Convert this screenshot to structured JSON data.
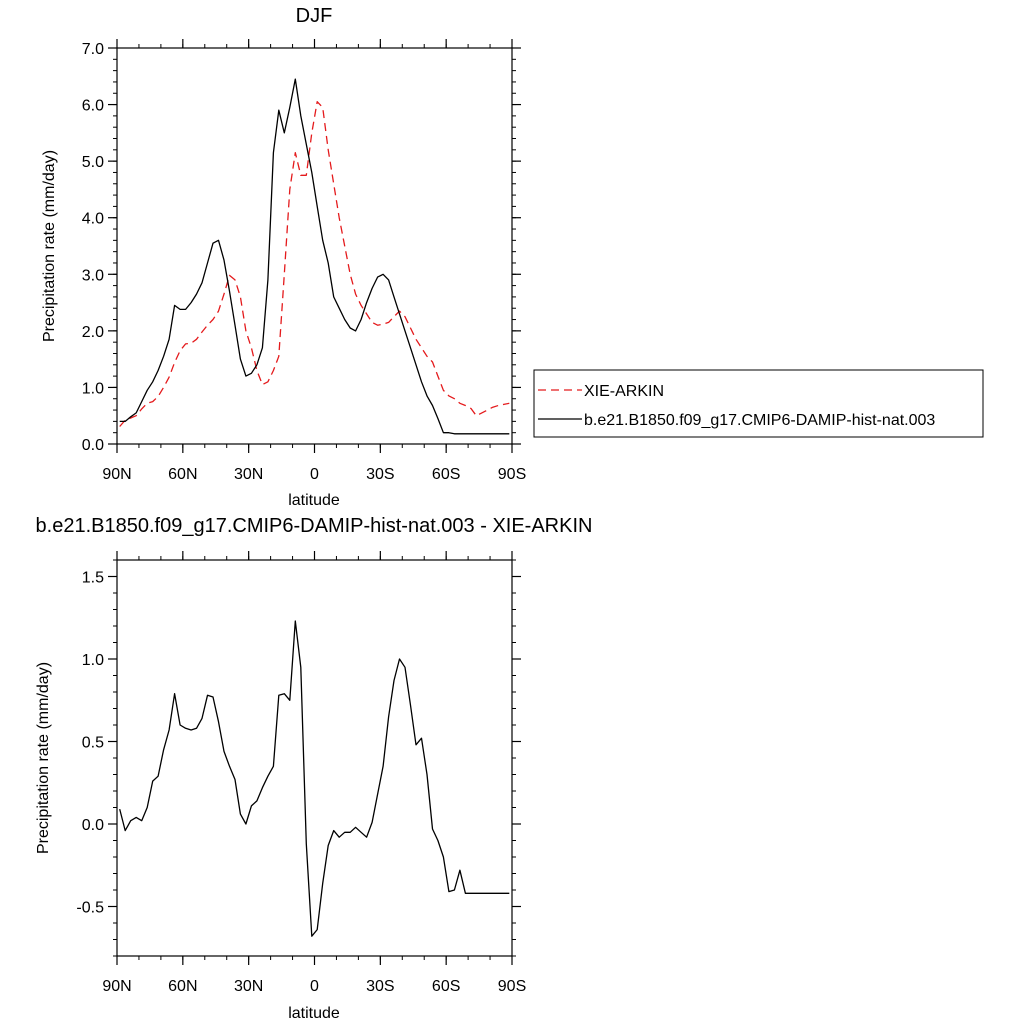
{
  "chart_data": [
    {
      "type": "line",
      "title": "DJF",
      "xlabel": "latitude",
      "ylabel": "Precipitation rate (mm/day)",
      "xlim": [
        90,
        -90
      ],
      "ylim": [
        0,
        7
      ],
      "xticks": [
        {
          "value": 90,
          "label": "90N"
        },
        {
          "value": 60,
          "label": "60N"
        },
        {
          "value": 30,
          "label": "30N"
        },
        {
          "value": 0,
          "label": "0"
        },
        {
          "value": -30,
          "label": "30S"
        },
        {
          "value": -60,
          "label": "60S"
        },
        {
          "value": -90,
          "label": "90S"
        }
      ],
      "yticks": [
        {
          "value": 0,
          "label": "0.0"
        },
        {
          "value": 1,
          "label": "1.0"
        },
        {
          "value": 2,
          "label": "2.0"
        },
        {
          "value": 3,
          "label": "3.0"
        },
        {
          "value": 4,
          "label": "4.0"
        },
        {
          "value": 5,
          "label": "5.0"
        },
        {
          "value": 6,
          "label": "6.0"
        },
        {
          "value": 7,
          "label": "7.0"
        }
      ],
      "legend_position": "right",
      "series": [
        {
          "name": "XIE-ARKIN",
          "color": "#e41a1c",
          "dash": "dashed",
          "x": [
            88.75,
            86.25,
            83.75,
            81.25,
            78.75,
            76.25,
            73.75,
            71.25,
            68.75,
            66.25,
            63.75,
            61.25,
            58.75,
            56.25,
            53.75,
            51.25,
            48.75,
            46.25,
            43.75,
            41.25,
            38.75,
            36.25,
            33.75,
            31.25,
            28.75,
            26.25,
            23.75,
            21.25,
            18.75,
            16.25,
            13.75,
            11.25,
            8.75,
            6.25,
            3.75,
            1.25,
            -1.25,
            -3.75,
            -6.25,
            -8.75,
            -11.25,
            -13.75,
            -16.25,
            -18.75,
            -21.25,
            -23.75,
            -26.25,
            -28.75,
            -31.25,
            -33.75,
            -36.25,
            -38.75,
            -41.25,
            -43.75,
            -46.25,
            -48.75,
            -51.25,
            -53.75,
            -56.25,
            -58.75,
            -61.25,
            -63.75,
            -66.25,
            -68.75,
            -71.25,
            -73.75,
            -76.25,
            -78.75,
            -81.25,
            -83.75,
            -86.25,
            -88.75
          ],
          "values": [
            0.31,
            0.42,
            0.46,
            0.5,
            0.62,
            0.72,
            0.75,
            0.84,
            1.0,
            1.18,
            1.44,
            1.65,
            1.77,
            1.78,
            1.85,
            1.98,
            2.1,
            2.2,
            2.35,
            2.65,
            2.98,
            2.9,
            2.6,
            2.0,
            1.7,
            1.3,
            1.05,
            1.1,
            1.3,
            1.55,
            3.0,
            4.5,
            5.15,
            4.75,
            4.75,
            5.5,
            6.05,
            5.95,
            5.2,
            4.6,
            4.0,
            3.5,
            3.0,
            2.65,
            2.45,
            2.3,
            2.15,
            2.1,
            2.12,
            2.15,
            2.25,
            2.35,
            2.25,
            2.05,
            1.85,
            1.7,
            1.55,
            1.45,
            1.2,
            0.95,
            0.85,
            0.8,
            0.72,
            0.68,
            0.63,
            0.5,
            0.55,
            0.6,
            0.65,
            0.68,
            0.7,
            0.72
          ]
        },
        {
          "name": "b.e21.B1850.f09_g17.CMIP6-DAMIP-hist-nat.003",
          "color": "#000000",
          "dash": "solid",
          "x": [
            88.75,
            86.25,
            83.75,
            81.25,
            78.75,
            76.25,
            73.75,
            71.25,
            68.75,
            66.25,
            63.75,
            61.25,
            58.75,
            56.25,
            53.75,
            51.25,
            48.75,
            46.25,
            43.75,
            41.25,
            38.75,
            36.25,
            33.75,
            31.25,
            28.75,
            26.25,
            23.75,
            21.25,
            18.75,
            16.25,
            13.75,
            11.25,
            8.75,
            6.25,
            3.75,
            1.25,
            -1.25,
            -3.75,
            -6.25,
            -8.75,
            -11.25,
            -13.75,
            -16.25,
            -18.75,
            -21.25,
            -23.75,
            -26.25,
            -28.75,
            -31.25,
            -33.75,
            -36.25,
            -38.75,
            -41.25,
            -43.75,
            -46.25,
            -48.75,
            -51.25,
            -53.75,
            -56.25,
            -58.75,
            -61.25,
            -63.75,
            -66.25,
            -68.75,
            -71.25,
            -73.75,
            -76.25,
            -78.75,
            -81.25,
            -83.75,
            -86.25,
            -88.75
          ],
          "values": [
            0.4,
            0.4,
            0.48,
            0.55,
            0.75,
            0.95,
            1.1,
            1.3,
            1.55,
            1.85,
            2.45,
            2.38,
            2.38,
            2.5,
            2.65,
            2.85,
            3.2,
            3.55,
            3.6,
            3.25,
            2.7,
            2.1,
            1.5,
            1.2,
            1.25,
            1.4,
            1.7,
            2.9,
            5.15,
            5.9,
            5.5,
            5.95,
            6.45,
            5.8,
            5.3,
            4.8,
            4.2,
            3.6,
            3.2,
            2.6,
            2.4,
            2.2,
            2.05,
            2.0,
            2.2,
            2.5,
            2.75,
            2.95,
            3.0,
            2.9,
            2.6,
            2.3,
            2.0,
            1.7,
            1.4,
            1.1,
            0.85,
            0.68,
            0.45,
            0.2,
            0.2,
            0.18,
            0.18,
            0.18,
            0.18,
            0.18,
            0.18,
            0.18,
            0.18,
            0.18,
            0.18,
            0.18
          ]
        }
      ]
    },
    {
      "type": "line",
      "title": "b.e21.B1850.f09_g17.CMIP6-DAMIP-hist-nat.003 - XIE-ARKIN",
      "xlabel": "latitude",
      "ylabel": "Precipitation rate (mm/day)",
      "xlim": [
        90,
        -90
      ],
      "ylim": [
        -0.8,
        1.6
      ],
      "xticks": [
        {
          "value": 90,
          "label": "90N"
        },
        {
          "value": 60,
          "label": "60N"
        },
        {
          "value": 30,
          "label": "30N"
        },
        {
          "value": 0,
          "label": "0"
        },
        {
          "value": -30,
          "label": "30S"
        },
        {
          "value": -60,
          "label": "60S"
        },
        {
          "value": -90,
          "label": "90S"
        }
      ],
      "yticks": [
        {
          "value": -0.5,
          "label": "-0.5"
        },
        {
          "value": 0,
          "label": "0.0"
        },
        {
          "value": 0.5,
          "label": "0.5"
        },
        {
          "value": 1.0,
          "label": "1.0"
        },
        {
          "value": 1.5,
          "label": "1.5"
        }
      ],
      "series": [
        {
          "color": "#000000",
          "dash": "solid",
          "x": [
            88.75,
            86.25,
            83.75,
            81.25,
            78.75,
            76.25,
            73.75,
            71.25,
            68.75,
            66.25,
            63.75,
            61.25,
            58.75,
            56.25,
            53.75,
            51.25,
            48.75,
            46.25,
            43.75,
            41.25,
            38.75,
            36.25,
            33.75,
            31.25,
            28.75,
            26.25,
            23.75,
            21.25,
            18.75,
            16.25,
            13.75,
            11.25,
            8.75,
            6.25,
            3.75,
            1.25,
            -1.25,
            -3.75,
            -6.25,
            -8.75,
            -11.25,
            -13.75,
            -16.25,
            -18.75,
            -21.25,
            -23.75,
            -26.25,
            -28.75,
            -31.25,
            -33.75,
            -36.25,
            -38.75,
            -41.25,
            -43.75,
            -46.25,
            -48.75,
            -51.25,
            -53.75,
            -56.25,
            -58.75,
            -61.25,
            -63.75,
            -66.25,
            -68.75,
            -71.25,
            -73.75,
            -76.25,
            -78.75,
            -81.25,
            -83.75,
            -86.25,
            -88.75
          ],
          "values": [
            0.09,
            -0.04,
            0.02,
            0.04,
            0.02,
            0.1,
            0.26,
            0.29,
            0.45,
            0.57,
            0.79,
            0.6,
            0.58,
            0.57,
            0.58,
            0.64,
            0.78,
            0.77,
            0.62,
            0.44,
            0.35,
            0.27,
            0.06,
            0.0,
            0.11,
            0.14,
            0.22,
            0.29,
            0.35,
            0.78,
            0.79,
            0.75,
            1.23,
            0.95,
            -0.12,
            -0.68,
            -0.64,
            -0.36,
            -0.13,
            -0.04,
            -0.08,
            -0.05,
            -0.05,
            -0.02,
            -0.05,
            -0.08,
            0.01,
            0.18,
            0.35,
            0.65,
            0.87,
            1.0,
            0.95,
            0.72,
            0.48,
            0.52,
            0.3,
            -0.03,
            -0.1,
            -0.2,
            -0.41,
            -0.4,
            -0.28,
            -0.42,
            -0.42,
            -0.42,
            -0.42,
            -0.42,
            -0.42,
            -0.42,
            -0.42,
            -0.42
          ]
        }
      ]
    }
  ]
}
